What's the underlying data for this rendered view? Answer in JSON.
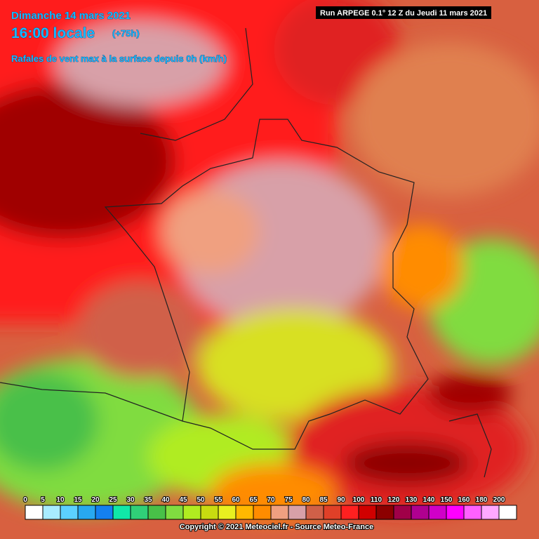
{
  "header": {
    "date": "Dimanche 14 mars 2021",
    "time": "16:00 locale",
    "lead": "(+75h)",
    "subtitle": "Rafales de vent max à la surface depuis 0h (km/h)",
    "run": "Run ARPEGE 0.1° 12 Z du Jeudi 11 mars 2021"
  },
  "legend": {
    "items": [
      {
        "value": 0,
        "color": "#ffffff"
      },
      {
        "value": 5,
        "color": "#a8ecff"
      },
      {
        "value": 10,
        "color": "#5cd0ff"
      },
      {
        "value": 15,
        "color": "#28a8f0"
      },
      {
        "value": 20,
        "color": "#1480f0"
      },
      {
        "value": 25,
        "color": "#10e8a8"
      },
      {
        "value": 30,
        "color": "#30d078"
      },
      {
        "value": 35,
        "color": "#48c048"
      },
      {
        "value": 40,
        "color": "#80dc40"
      },
      {
        "value": 45,
        "color": "#b0ec20"
      },
      {
        "value": 50,
        "color": "#c8dc10"
      },
      {
        "value": 55,
        "color": "#e8f020"
      },
      {
        "value": 60,
        "color": "#ffb800"
      },
      {
        "value": 65,
        "color": "#ff8c00"
      },
      {
        "value": 70,
        "color": "#f0a080"
      },
      {
        "value": 75,
        "color": "#d8a0a8"
      },
      {
        "value": 80,
        "color": "#d06048"
      },
      {
        "value": 85,
        "color": "#e04028"
      },
      {
        "value": 90,
        "color": "#ff2020"
      },
      {
        "value": 100,
        "color": "#d00000"
      },
      {
        "value": 110,
        "color": "#8c0000"
      },
      {
        "value": 120,
        "color": "#a00048"
      },
      {
        "value": 130,
        "color": "#b00090"
      },
      {
        "value": 140,
        "color": "#d000c8"
      },
      {
        "value": 150,
        "color": "#ff00ff"
      },
      {
        "value": 160,
        "color": "#ff60ff"
      },
      {
        "value": 180,
        "color": "#ffa8ff"
      },
      {
        "value": 200,
        "color": "#ffffff"
      }
    ]
  },
  "copyright": "Copyright © 2021 Meteociel.fr - Source Meteo-France"
}
